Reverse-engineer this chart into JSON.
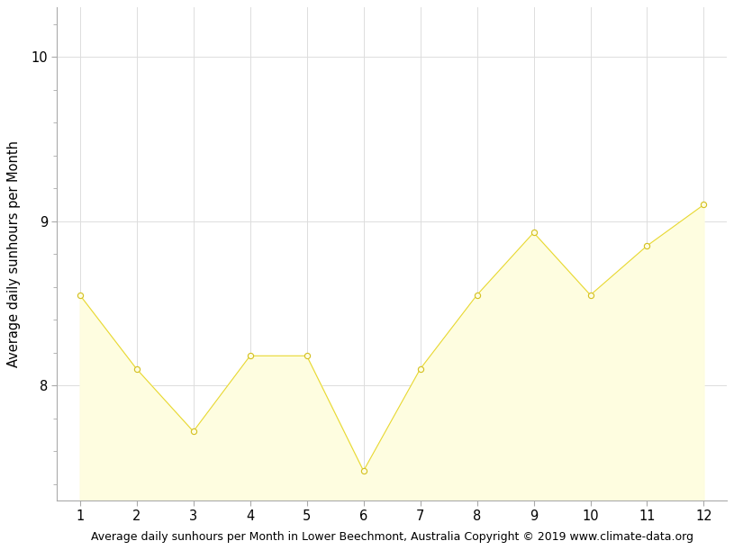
{
  "months": [
    1,
    2,
    3,
    4,
    5,
    6,
    7,
    8,
    9,
    10,
    11,
    12
  ],
  "values": [
    8.55,
    8.1,
    7.72,
    8.18,
    8.18,
    7.48,
    8.1,
    8.55,
    8.93,
    8.55,
    8.85,
    9.1
  ],
  "ylim_bottom": 7.3,
  "ylim_top": 10.3,
  "xlim_left": 0.6,
  "xlim_right": 12.4,
  "yticks": [
    8,
    9,
    10
  ],
  "xticks": [
    1,
    2,
    3,
    4,
    5,
    6,
    7,
    8,
    9,
    10,
    11,
    12
  ],
  "ylabel": "Average daily sunhours per Month",
  "xlabel": "Average daily sunhours per Month in Lower Beechmont, Australia Copyright © 2019 www.climate-data.org",
  "fill_color": "#FEFDE0",
  "line_color": "#E8D830",
  "marker_facecolor": "#FEFDE0",
  "marker_edgecolor": "#D4C020",
  "grid_color": "#DDDDDD",
  "spine_color": "#AAAAAA",
  "background_color": "#FFFFFF",
  "ylabel_fontsize": 10.5,
  "xlabel_fontsize": 9.0,
  "tick_fontsize": 10.5,
  "minor_ytick_interval": 0.2,
  "figwidth": 8.15,
  "figheight": 6.11,
  "dpi": 100
}
